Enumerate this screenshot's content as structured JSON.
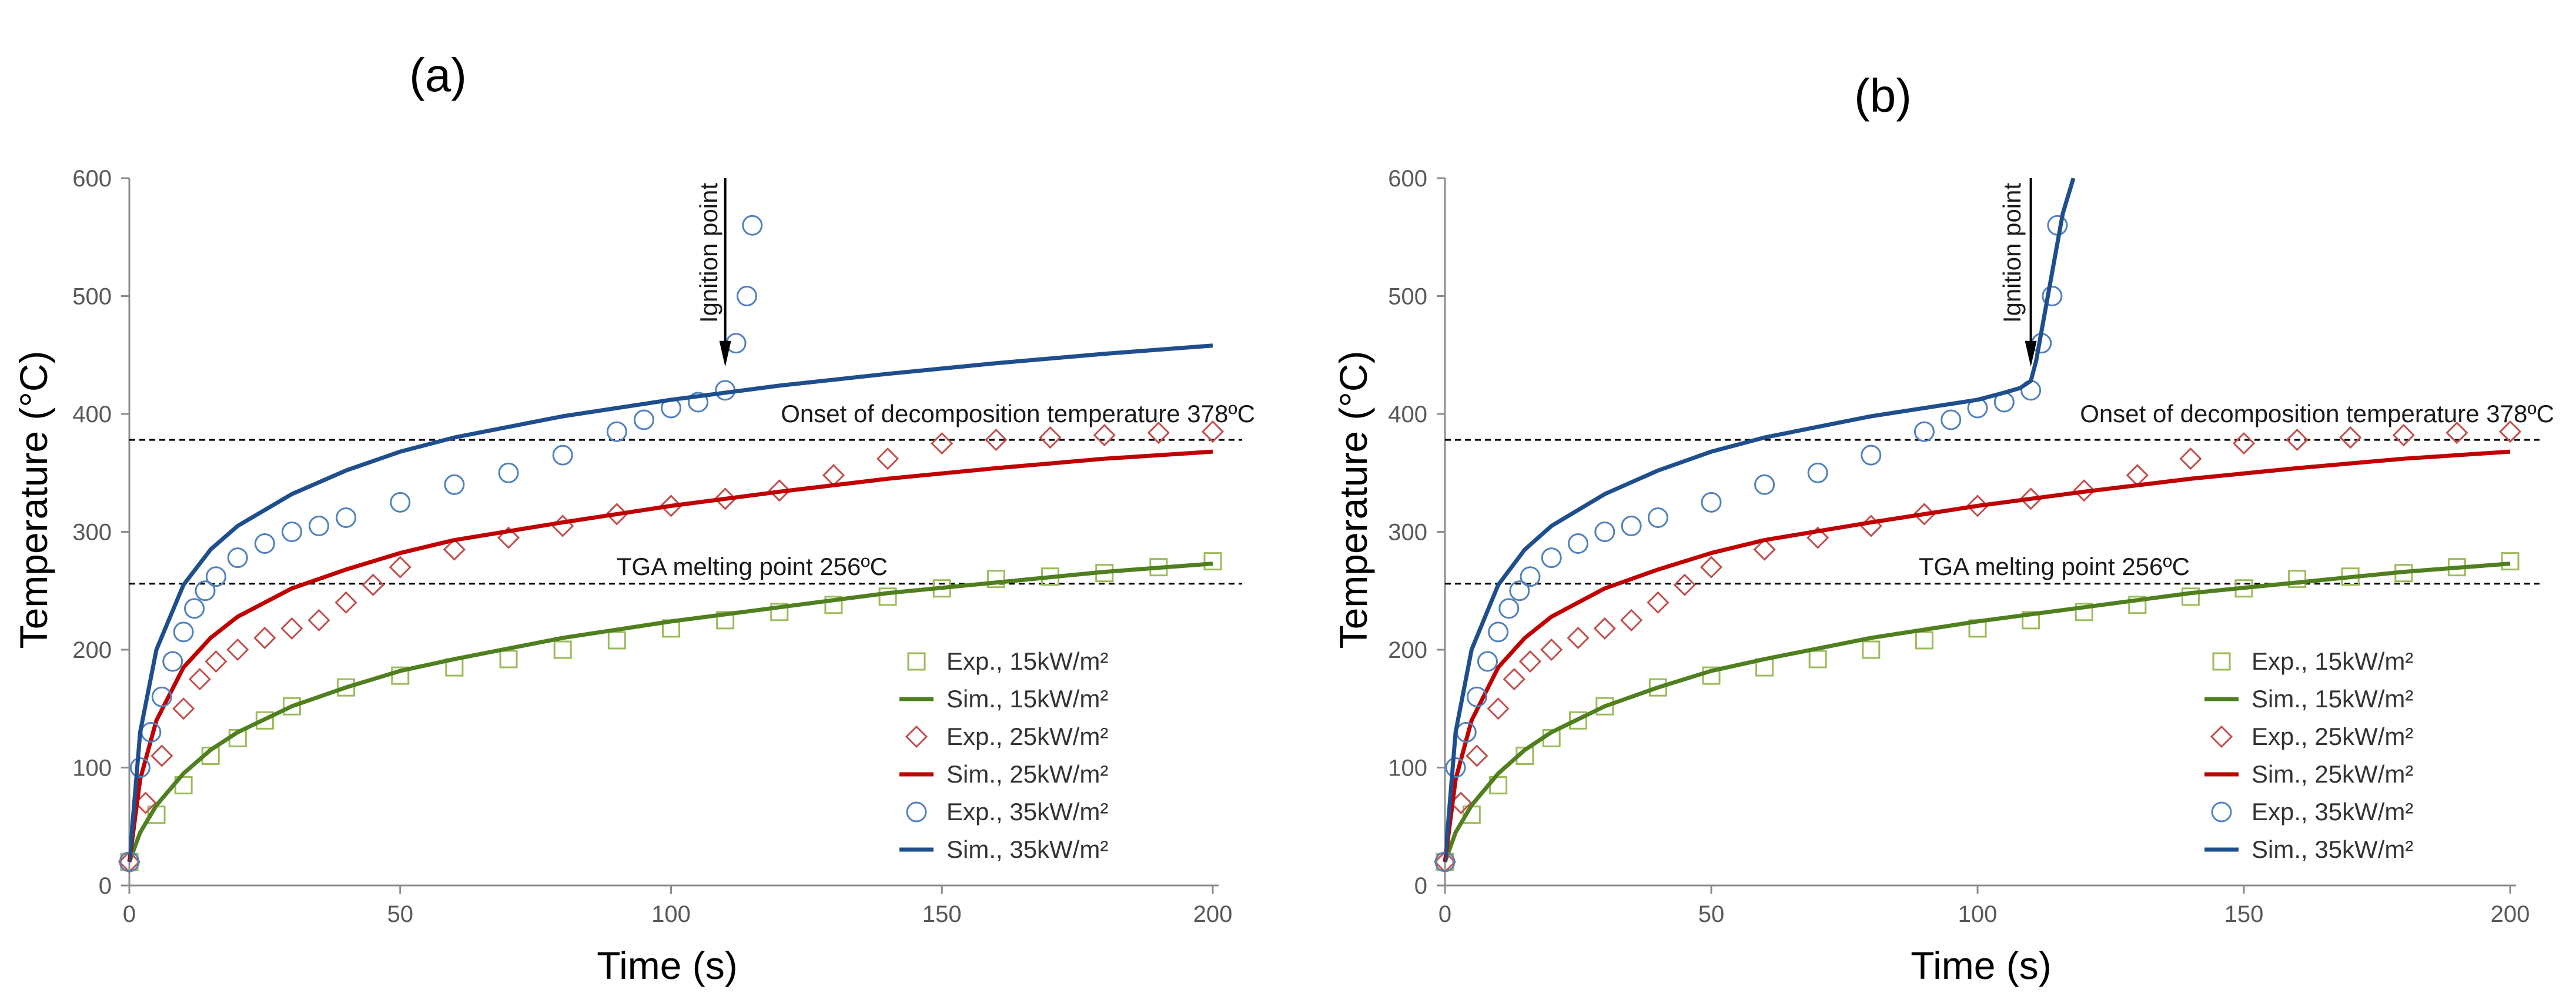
{
  "figure": {
    "panels": [
      "(a)",
      "(b)"
    ]
  },
  "chart_data": [
    {
      "id": "a",
      "type": "scatter",
      "panel_label": "(a)",
      "xlabel": "Time (s)",
      "ylabel": "Temperature (°C)",
      "xlim": [
        0,
        200
      ],
      "ylim": [
        0,
        600
      ],
      "xticks": [
        0,
        50,
        100,
        150,
        200
      ],
      "yticks": [
        0,
        100,
        200,
        300,
        400,
        500,
        600
      ],
      "hlines": [
        {
          "y": 378,
          "label": "Onset of decomposition temperature  378ºC"
        },
        {
          "y": 256,
          "label": "TGA melting point 256ºC"
        }
      ],
      "ignition": {
        "label": "Ignition point",
        "x": 110
      },
      "legend": [
        {
          "label": "Exp., 15kW/m²",
          "kind": "marker",
          "marker": "square",
          "color": "#9BBB59"
        },
        {
          "label": "Sim., 15kW/m²",
          "kind": "line",
          "color": "#4F7F1F"
        },
        {
          "label": "Exp., 25kW/m²",
          "kind": "marker",
          "marker": "diamond",
          "color": "#C0504D"
        },
        {
          "label": "Sim., 25kW/m²",
          "kind": "line",
          "color": "#C00000"
        },
        {
          "label": "Exp., 35kW/m²",
          "kind": "marker",
          "marker": "circle",
          "color": "#4F81BD"
        },
        {
          "label": "Sim., 35kW/m²",
          "kind": "line",
          "color": "#1F4E8C"
        }
      ],
      "series": [
        {
          "name": "Exp., 15kW/m²",
          "kind": "scatter",
          "marker": "square",
          "color": "#9BBB59",
          "x": [
            0,
            5,
            10,
            15,
            20,
            25,
            30,
            40,
            50,
            60,
            70,
            80,
            90,
            100,
            110,
            120,
            130,
            140,
            150,
            160,
            170,
            180,
            190,
            200
          ],
          "y": [
            20,
            60,
            85,
            110,
            125,
            140,
            152,
            168,
            178,
            185,
            192,
            200,
            208,
            218,
            225,
            232,
            238,
            245,
            252,
            260,
            262,
            265,
            270,
            275
          ]
        },
        {
          "name": "Sim., 15kW/m²",
          "kind": "line",
          "color": "#4F7F1F",
          "x": [
            0,
            2,
            5,
            10,
            15,
            20,
            30,
            40,
            50,
            60,
            80,
            100,
            120,
            140,
            160,
            180,
            200
          ],
          "y": [
            20,
            45,
            68,
            95,
            115,
            130,
            152,
            168,
            182,
            192,
            210,
            224,
            236,
            248,
            257,
            266,
            273
          ]
        },
        {
          "name": "Exp., 25kW/m²",
          "kind": "scatter",
          "marker": "diamond",
          "color": "#C0504D",
          "x": [
            0,
            3,
            6,
            10,
            13,
            16,
            20,
            25,
            30,
            35,
            40,
            45,
            50,
            60,
            70,
            80,
            90,
            100,
            110,
            120,
            130,
            140,
            150,
            160,
            170,
            180,
            190,
            200
          ],
          "y": [
            20,
            70,
            110,
            150,
            175,
            190,
            200,
            210,
            218,
            225,
            240,
            255,
            270,
            285,
            295,
            305,
            315,
            322,
            328,
            335,
            348,
            362,
            375,
            378,
            380,
            382,
            384,
            385
          ]
        },
        {
          "name": "Sim., 25kW/m²",
          "kind": "line",
          "color": "#C00000",
          "x": [
            0,
            2,
            5,
            10,
            15,
            20,
            30,
            40,
            50,
            60,
            80,
            100,
            120,
            140,
            160,
            180,
            200
          ],
          "y": [
            20,
            90,
            140,
            185,
            210,
            228,
            252,
            268,
            282,
            293,
            308,
            322,
            334,
            345,
            354,
            362,
            368
          ]
        },
        {
          "name": "Exp., 35kW/m²",
          "kind": "scatter",
          "marker": "circle",
          "color": "#4F81BD",
          "x": [
            0,
            2,
            4,
            6,
            8,
            10,
            12,
            14,
            16,
            20,
            25,
            30,
            35,
            40,
            50,
            60,
            70,
            80,
            90,
            95,
            100,
            105,
            110,
            112,
            114,
            115
          ],
          "y": [
            20,
            100,
            130,
            160,
            190,
            215,
            235,
            250,
            262,
            278,
            290,
            300,
            305,
            312,
            325,
            340,
            350,
            365,
            385,
            395,
            405,
            410,
            420,
            460,
            500,
            560
          ]
        }
      ],
      "sim35": {
        "name": "Sim., 35kW/m²",
        "color": "#1F4E8C",
        "x": [
          0,
          2,
          5,
          10,
          15,
          20,
          30,
          40,
          50,
          60,
          80,
          100,
          120,
          140,
          160,
          180,
          200
        ],
        "y": [
          20,
          130,
          200,
          255,
          285,
          305,
          332,
          352,
          368,
          380,
          398,
          412,
          424,
          434,
          443,
          451,
          458
        ]
      }
    },
    {
      "id": "b",
      "type": "scatter",
      "panel_label": "(b)",
      "xlabel": "Time (s)",
      "ylabel": "Temperature (°C)",
      "xlim": [
        0,
        200
      ],
      "ylim": [
        0,
        600
      ],
      "xticks": [
        0,
        50,
        100,
        150,
        200
      ],
      "yticks": [
        0,
        100,
        200,
        300,
        400,
        500,
        600
      ],
      "hlines": [
        {
          "y": 378,
          "label": "Onset of decomposition temperature  378ºC"
        },
        {
          "y": 256,
          "label": "TGA melting point 256ºC"
        }
      ],
      "ignition": {
        "label": "Ignition point",
        "x": 110
      },
      "legend": [
        {
          "label": "Exp., 15kW/m²",
          "kind": "marker",
          "marker": "square",
          "color": "#9BBB59"
        },
        {
          "label": "Sim., 15kW/m²",
          "kind": "line",
          "color": "#4F7F1F"
        },
        {
          "label": "Exp., 25kW/m²",
          "kind": "marker",
          "marker": "diamond",
          "color": "#C0504D"
        },
        {
          "label": "Sim., 25kW/m²",
          "kind": "line",
          "color": "#C00000"
        },
        {
          "label": "Exp., 35kW/m²",
          "kind": "marker",
          "marker": "circle",
          "color": "#4F81BD"
        },
        {
          "label": "Sim., 35kW/m²",
          "kind": "line",
          "color": "#1F4E8C"
        }
      ],
      "series": [
        {
          "name": "Exp., 15kW/m²",
          "kind": "scatter",
          "marker": "square",
          "color": "#9BBB59",
          "x": [
            0,
            5,
            10,
            15,
            20,
            25,
            30,
            40,
            50,
            60,
            70,
            80,
            90,
            100,
            110,
            120,
            130,
            140,
            150,
            160,
            170,
            180,
            190,
            200
          ],
          "y": [
            20,
            60,
            85,
            110,
            125,
            140,
            152,
            168,
            178,
            185,
            192,
            200,
            208,
            218,
            225,
            232,
            238,
            245,
            252,
            260,
            262,
            265,
            270,
            275
          ]
        },
        {
          "name": "Sim., 15kW/m²",
          "kind": "line",
          "color": "#4F7F1F",
          "x": [
            0,
            2,
            5,
            10,
            15,
            20,
            30,
            40,
            50,
            60,
            80,
            100,
            120,
            140,
            160,
            180,
            200
          ],
          "y": [
            20,
            45,
            68,
            95,
            115,
            130,
            152,
            168,
            182,
            192,
            210,
            224,
            236,
            248,
            257,
            266,
            273
          ]
        },
        {
          "name": "Exp., 25kW/m²",
          "kind": "scatter",
          "marker": "diamond",
          "color": "#C0504D",
          "x": [
            0,
            3,
            6,
            10,
            13,
            16,
            20,
            25,
            30,
            35,
            40,
            45,
            50,
            60,
            70,
            80,
            90,
            100,
            110,
            120,
            130,
            140,
            150,
            160,
            170,
            180,
            190,
            200
          ],
          "y": [
            20,
            70,
            110,
            150,
            175,
            190,
            200,
            210,
            218,
            225,
            240,
            255,
            270,
            285,
            295,
            305,
            315,
            322,
            328,
            335,
            348,
            362,
            375,
            378,
            380,
            382,
            384,
            385
          ]
        },
        {
          "name": "Sim., 25kW/m²",
          "kind": "line",
          "color": "#C00000",
          "x": [
            0,
            2,
            5,
            10,
            15,
            20,
            30,
            40,
            50,
            60,
            80,
            100,
            120,
            140,
            160,
            180,
            200
          ],
          "y": [
            20,
            90,
            140,
            185,
            210,
            228,
            252,
            268,
            282,
            293,
            308,
            322,
            334,
            345,
            354,
            362,
            368
          ]
        },
        {
          "name": "Exp., 35kW/m²",
          "kind": "scatter",
          "marker": "circle",
          "color": "#4F81BD",
          "x": [
            0,
            2,
            4,
            6,
            8,
            10,
            12,
            14,
            16,
            20,
            25,
            30,
            35,
            40,
            50,
            60,
            70,
            80,
            90,
            95,
            100,
            105,
            110,
            112,
            114,
            115
          ],
          "y": [
            20,
            100,
            130,
            160,
            190,
            215,
            235,
            250,
            262,
            278,
            290,
            300,
            305,
            312,
            325,
            340,
            350,
            365,
            385,
            395,
            405,
            410,
            420,
            460,
            500,
            560
          ]
        }
      ],
      "sim35": {
        "name": "Sim., 35kW/m²",
        "color": "#1F4E8C",
        "x": [
          0,
          2,
          5,
          10,
          15,
          20,
          30,
          40,
          50,
          60,
          80,
          100,
          105,
          108,
          110,
          111,
          112,
          114,
          116,
          118
        ],
        "y": [
          20,
          130,
          200,
          255,
          285,
          305,
          332,
          352,
          368,
          380,
          398,
          412,
          418,
          422,
          428,
          445,
          470,
          520,
          570,
          600
        ]
      }
    }
  ]
}
